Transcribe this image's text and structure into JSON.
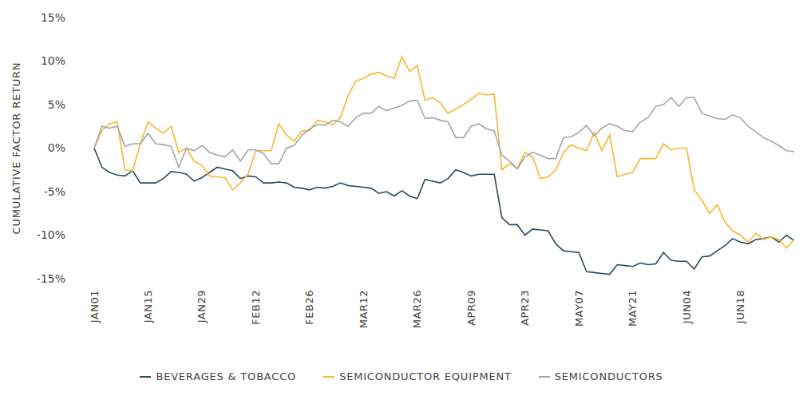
{
  "chart_data": {
    "type": "line",
    "y_label": "CUMULATIVE FACTOR RETURN",
    "categories": [
      "JAN01",
      null,
      null,
      null,
      null,
      null,
      null,
      "JAN15",
      null,
      null,
      null,
      null,
      null,
      null,
      "JAN29",
      null,
      null,
      null,
      null,
      null,
      null,
      "FEB12",
      null,
      null,
      null,
      null,
      null,
      null,
      "FEB26",
      null,
      null,
      null,
      null,
      null,
      null,
      "MAR12",
      null,
      null,
      null,
      null,
      null,
      null,
      "MAR26",
      null,
      null,
      null,
      null,
      null,
      null,
      "APR09",
      null,
      null,
      null,
      null,
      null,
      null,
      "APR23",
      null,
      null,
      null,
      null,
      null,
      null,
      "MAY07",
      null,
      null,
      null,
      null,
      null,
      null,
      "MAY21",
      null,
      null,
      null,
      null,
      null,
      null,
      "JUN04",
      null,
      null,
      null,
      null,
      null,
      null,
      "JUN18",
      null,
      null,
      null,
      null,
      null,
      null,
      null
    ],
    "series": [
      {
        "name": "BEVERAGES & TOBACCO",
        "color": "#2d4b5e",
        "values": [
          0,
          -2.2,
          -2.8,
          -3.1,
          -3.2,
          -2.6,
          -4.0,
          -4.0,
          -4.0,
          -3.5,
          -2.7,
          -2.8,
          -3.0,
          -3.8,
          -3.4,
          -2.8,
          -2.2,
          -2.4,
          -2.6,
          -3.5,
          -3.2,
          -3.3,
          -4.0,
          -4.0,
          -3.9,
          -4.0,
          -4.5,
          -4.6,
          -4.8,
          -4.5,
          -4.6,
          -4.4,
          -4.0,
          -4.3,
          -4.4,
          -4.5,
          -4.6,
          -5.2,
          -5.0,
          -5.5,
          -4.9,
          -5.5,
          -5.8,
          -3.6,
          -3.8,
          -4.0,
          -3.5,
          -2.5,
          -2.8,
          -3.2,
          -3.0,
          -3.0,
          -3.0,
          -8.0,
          -8.8,
          -8.8,
          -10.0,
          -9.3,
          -9.4,
          -9.5,
          -11.0,
          -11.8,
          -11.9,
          -12.0,
          -14.2,
          -14.3,
          -14.4,
          -14.5,
          -13.4,
          -13.5,
          -13.6,
          -13.2,
          -13.4,
          -13.3,
          -12.0,
          -12.9,
          -13.0,
          -13.0,
          -13.9,
          -12.5,
          -12.4,
          -11.8,
          -11.2,
          -10.4,
          -10.8,
          -11.0,
          -10.5,
          -10.4,
          -10.2,
          -10.8,
          -10.0,
          -10.6
        ]
      },
      {
        "name": "SEMICONDUCTOR EQUIPMENT",
        "color": "#f5b731",
        "values": [
          0,
          2.0,
          2.8,
          3.0,
          -2.5,
          -2.6,
          0.5,
          3.0,
          2.3,
          1.7,
          2.5,
          -0.5,
          0,
          -1.5,
          -2.0,
          -3.2,
          -3.3,
          -3.4,
          -4.8,
          -4.0,
          -3.0,
          -0.3,
          -0.3,
          -0.3,
          2.8,
          1.5,
          0.8,
          2.0,
          2.0,
          3.2,
          3.0,
          2.7,
          3.5,
          6.0,
          7.7,
          8.0,
          8.5,
          8.7,
          8.3,
          8.0,
          10.5,
          8.8,
          9.5,
          5.5,
          5.8,
          5.2,
          4.0,
          4.5,
          5.0,
          5.6,
          6.3,
          6.1,
          6.2,
          -2.5,
          -1.8,
          -2.3,
          -0.5,
          -1.0,
          -3.5,
          -3.3,
          -2.5,
          -0.5,
          0.4,
          0,
          -0.3,
          1.8,
          -0.3,
          1.5,
          -3.3,
          -3.0,
          -2.8,
          -1.2,
          -1.2,
          -1.2,
          0.5,
          -0.2,
          0,
          0,
          -4.8,
          -6.0,
          -7.5,
          -6.5,
          -8.5,
          -9.5,
          -10.0,
          -10.8,
          -9.8,
          -10.5,
          -10.2,
          -10.5,
          -11.5,
          -10.5
        ]
      },
      {
        "name": "SEMICONDUCTORS",
        "color": "#a6a6a6",
        "values": [
          0,
          2.5,
          2.3,
          2.5,
          0.2,
          0.5,
          0.5,
          1.7,
          0.5,
          0.4,
          0.2,
          -2.2,
          0,
          -0.3,
          0.3,
          -0.5,
          -0.8,
          -1.0,
          -0.2,
          -1.5,
          -0.2,
          -0.2,
          -0.6,
          -1.8,
          -1.8,
          0,
          0.3,
          1.5,
          2.2,
          2.7,
          2.6,
          3.2,
          3.0,
          2.5,
          3.5,
          4.0,
          4.0,
          4.8,
          4.3,
          4.6,
          4.9,
          5.4,
          5.5,
          3.4,
          3.5,
          3.2,
          3.0,
          1.2,
          1.2,
          2.5,
          2.8,
          2.2,
          2.0,
          -0.8,
          -1.5,
          -2.4,
          -1.0,
          -0.5,
          -0.8,
          -1.2,
          -1.2,
          1.2,
          1.3,
          1.8,
          2.6,
          1.4,
          2.3,
          2.8,
          2.5,
          2.0,
          1.9,
          3.0,
          3.5,
          4.8,
          5.0,
          5.8,
          4.8,
          5.8,
          5.8,
          4.0,
          3.7,
          3.4,
          3.3,
          3.8,
          3.5,
          2.5,
          1.9,
          1.2,
          0.8,
          0.3,
          -0.3,
          -0.4
        ]
      }
    ],
    "ylim": [
      -15,
      15
    ],
    "yticks": [
      {
        "value": -15,
        "label": "-15%"
      },
      {
        "value": -10,
        "label": "-10%"
      },
      {
        "value": -5,
        "label": "-5%"
      },
      {
        "value": 0,
        "label": "0%"
      },
      {
        "value": 5,
        "label": "5%"
      },
      {
        "value": 10,
        "label": "10%"
      },
      {
        "value": 15,
        "label": "15%"
      }
    ],
    "legend": "bottom"
  }
}
